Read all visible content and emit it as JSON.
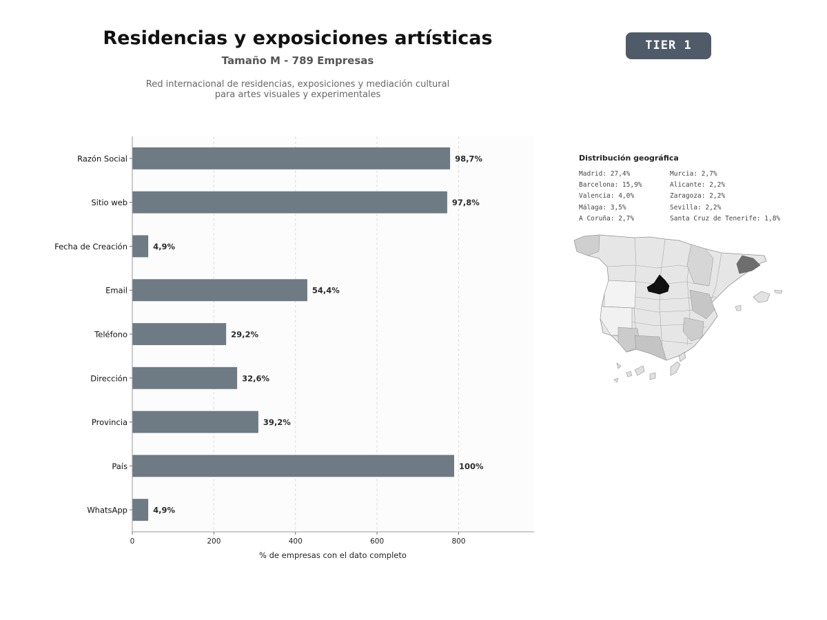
{
  "header": {
    "title": "Residencias y exposiciones artísticas",
    "subtitle": "Tamaño M - 789 Empresas",
    "description_line1": "Red internacional de residencias, exposiciones y mediación cultural",
    "description_line2": "para artes visuales y experimentales",
    "badge": "TIER 1"
  },
  "chart_data": {
    "type": "bar",
    "orientation": "horizontal",
    "categories": [
      "Razón Social",
      "Sitio web",
      "Fecha de Creación",
      "Email",
      "Teléfono",
      "Dirección",
      "Provincia",
      "País",
      "WhatsApp"
    ],
    "values": [
      779,
      772,
      39,
      429,
      230,
      257,
      309,
      789,
      39
    ],
    "data_labels": [
      "98,7%",
      "97,8%",
      "4,9%",
      "54,4%",
      "29,2%",
      "32,6%",
      "39,2%",
      "100%",
      "4,9%"
    ],
    "xlabel": "% de empresas con el dato completo",
    "ylabel": "",
    "xlim": [
      0,
      985
    ],
    "xticks": [
      0,
      200,
      400,
      600,
      800
    ],
    "xtick_labels": [
      "0",
      "200",
      "400",
      "600",
      "800"
    ],
    "grid": "vertical dashed",
    "bar_color": "#6e7a84"
  },
  "geo": {
    "title": "Distribución geográfica",
    "left_column": [
      "Madrid: 27,4%",
      "Barcelona: 15,9%",
      "Valencia: 4,0%",
      "Málaga: 3,5%",
      "A Coruña: 2,7%"
    ],
    "right_column": [
      "Murcia: 2,7%",
      "Alicante: 2,2%",
      "Zaragoza: 2,2%",
      "Sevilla: 2,2%",
      "Santa Cruz de Tenerife: 1,8%"
    ]
  }
}
